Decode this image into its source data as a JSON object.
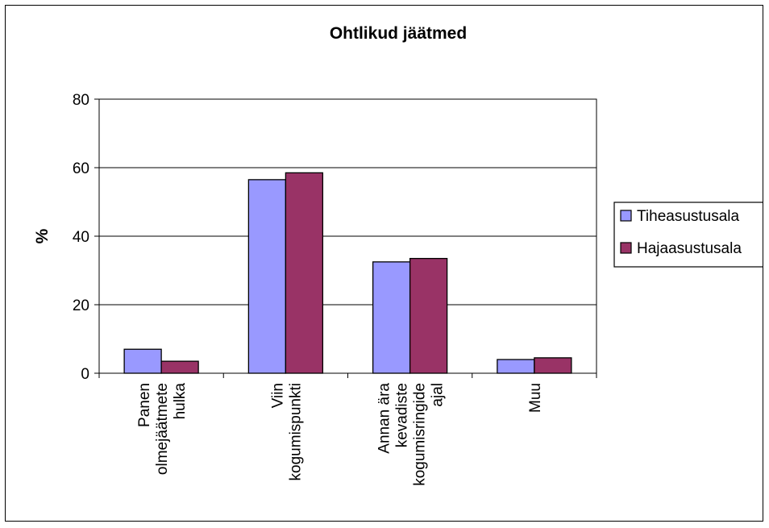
{
  "chart_data": {
    "type": "bar",
    "title": "Ohtlikud jäätmed",
    "xlabel": "",
    "ylabel": "%",
    "ylim": [
      0,
      80
    ],
    "yticks": [
      0,
      20,
      40,
      60,
      80
    ],
    "grid": true,
    "legend_position": "right",
    "categories": [
      [
        "Panen",
        "olmejäätmete",
        "hulka"
      ],
      [
        "Viin",
        "kogumispunkti"
      ],
      [
        "Annan ära",
        "kevadiste",
        "kogumisringide",
        "ajal"
      ],
      [
        "Muu"
      ]
    ],
    "series": [
      {
        "name": "Tiheasustusala",
        "color": "#9999ff",
        "values": [
          7,
          56.5,
          32.5,
          4
        ]
      },
      {
        "name": "Hajaasustusala",
        "color": "#993366",
        "values": [
          3.5,
          58.5,
          33.5,
          4.5
        ]
      }
    ]
  }
}
